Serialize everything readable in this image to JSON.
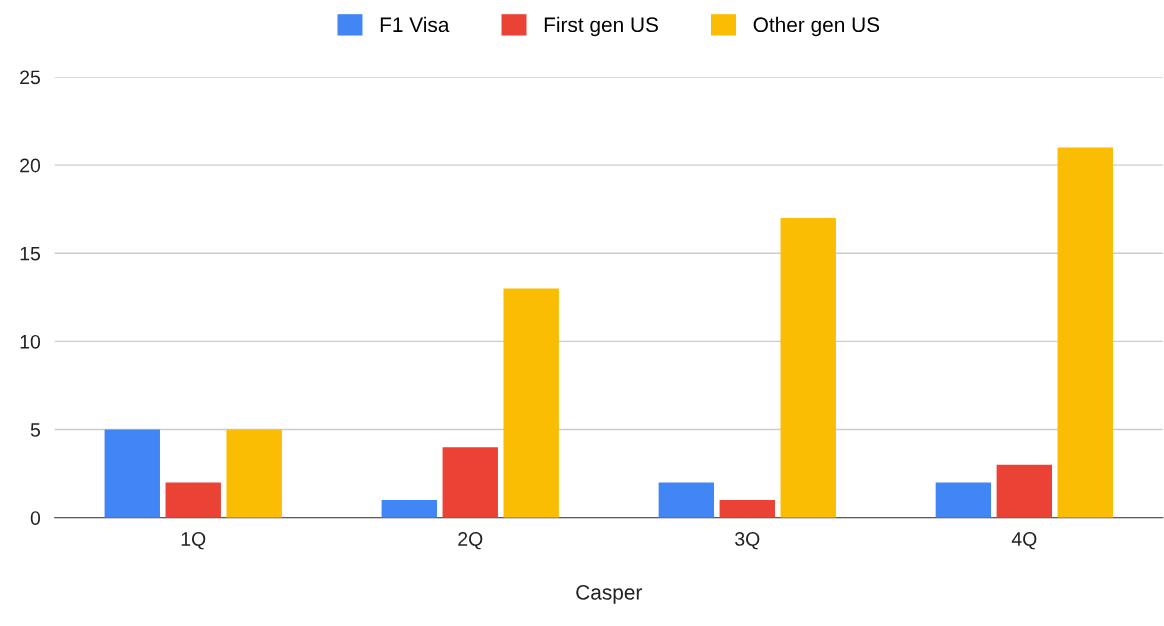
{
  "chart_data": {
    "type": "bar",
    "xlabel": "Casper",
    "categories": [
      "1Q",
      "2Q",
      "3Q",
      "4Q"
    ],
    "series": [
      {
        "name": "F1 Visa",
        "color": "#4285f4",
        "values": [
          5,
          1,
          2,
          2
        ]
      },
      {
        "name": "First gen US",
        "color": "#ea4335",
        "values": [
          2,
          4,
          1,
          3
        ]
      },
      {
        "name": "Other gen US",
        "color": "#fbbc04",
        "values": [
          5,
          13,
          17,
          21
        ]
      }
    ],
    "ylim": [
      0,
      25
    ],
    "yticks": [
      0,
      5,
      10,
      15,
      20,
      25
    ],
    "grid": "y",
    "legend": "top"
  }
}
